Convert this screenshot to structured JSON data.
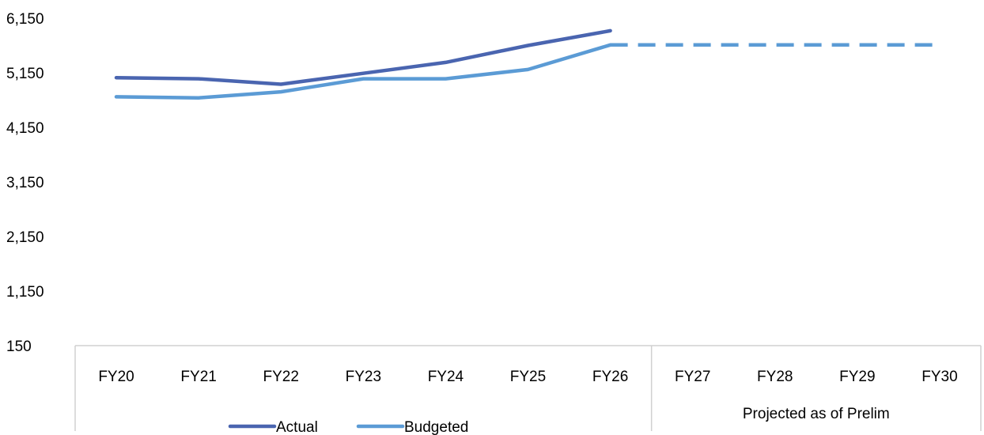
{
  "chart_data": {
    "type": "line",
    "title": "",
    "xlabel": "",
    "ylabel": "",
    "categories": [
      "FY20",
      "FY21",
      "FY22",
      "FY23",
      "FY24",
      "FY25",
      "FY26",
      "FY27",
      "FY28",
      "FY29",
      "FY30"
    ],
    "y_ticks": [
      "6,150",
      "5,150",
      "4,150",
      "3,150",
      "2,150",
      "1,150",
      "150"
    ],
    "ylim": [
      150,
      6150
    ],
    "grid": false,
    "legend_position": "bottom-left",
    "category_groups": [
      {
        "label": "",
        "categories": [
          "FY20",
          "FY21",
          "FY22",
          "FY23",
          "FY24",
          "FY25",
          "FY26"
        ]
      },
      {
        "label": "Projected as of Prelim",
        "categories": [
          "FY27",
          "FY28",
          "FY29",
          "FY30"
        ]
      }
    ],
    "series": [
      {
        "name": "Actual",
        "color": "#4a65b0",
        "style": "solid",
        "values": [
          5060,
          5040,
          4940,
          5140,
          5340,
          5650,
          5920,
          null,
          null,
          null,
          null
        ]
      },
      {
        "name": "Budgeted",
        "color": "#5b9bd5",
        "style": "solid",
        "values": [
          4710,
          4690,
          4800,
          5040,
          5040,
          5210,
          5660,
          null,
          null,
          null,
          null
        ]
      },
      {
        "name": "",
        "color": "#5b9bd5",
        "style": "dashed",
        "values": [
          null,
          null,
          null,
          null,
          null,
          null,
          5660,
          5660,
          5660,
          5660,
          5660
        ]
      }
    ]
  }
}
